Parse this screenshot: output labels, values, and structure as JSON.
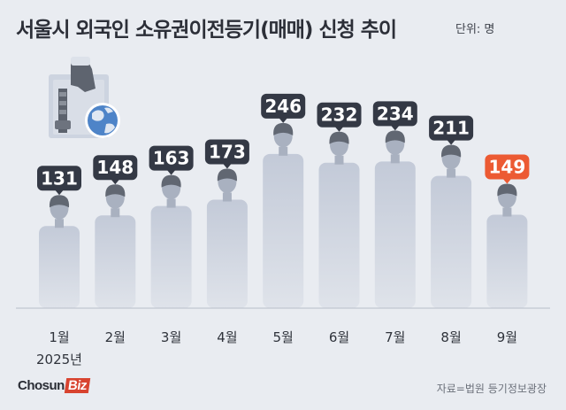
{
  "title": "서울시 외국인 소유권이전등기(매매) 신청 추이",
  "unit_label": "단위: 명",
  "source": "자료=법원 등기정보광장",
  "logo": {
    "main": "Chosun",
    "accent": "Biz"
  },
  "colors": {
    "background": "#e9ecf1",
    "bar": "#c7cedc",
    "person": "#a9b1c0",
    "head": "#616772",
    "badge": "#343945",
    "highlight": "#ec5a33"
  },
  "chart_data": {
    "type": "bar",
    "title": "서울시 외국인 소유권이전등기(매매) 신청 추이",
    "categories": [
      "1월",
      "2월",
      "3월",
      "4월",
      "5월",
      "6월",
      "7월",
      "8월",
      "9월"
    ],
    "year_label": "2025년",
    "series": [
      {
        "values": [
          131,
          148,
          163,
          173,
          246,
          232,
          234,
          211,
          149
        ]
      }
    ],
    "highlight_index": 8,
    "ylim": [
      0,
      250
    ],
    "grid": false,
    "legend": "none"
  }
}
